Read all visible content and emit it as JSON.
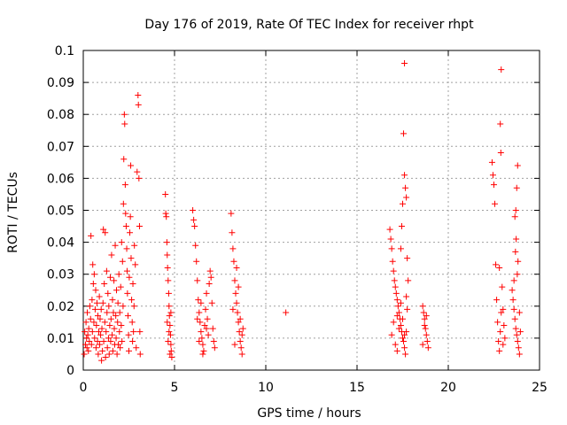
{
  "chart_data": {
    "type": "scatter",
    "title": "Day 176 of 2019, Rate Of TEC Index for receiver rhpt",
    "xlabel": "GPS time / hours",
    "ylabel": "ROTI / TECUs",
    "xlim": [
      0,
      25
    ],
    "ylim": [
      0,
      0.1
    ],
    "xticks": [
      0,
      5,
      10,
      15,
      20,
      25
    ],
    "xtick_labels": [
      "0",
      "5",
      "10",
      "15",
      "20",
      "25"
    ],
    "yticks": [
      0,
      0.01,
      0.02,
      0.03,
      0.04,
      0.05,
      0.06,
      0.07,
      0.08,
      0.09,
      0.1
    ],
    "ytick_labels": [
      "0",
      "0.01",
      "0.02",
      "0.03",
      "0.04",
      "0.05",
      "0.06",
      "0.07",
      "0.08",
      "0.09",
      "0.1"
    ],
    "grid": true,
    "marker": "+",
    "color": "#ff0000",
    "series": [
      {
        "name": "ROTI",
        "points": [
          [
            0.05,
            0.005
          ],
          [
            0.08,
            0.012
          ],
          [
            0.12,
            0.008
          ],
          [
            0.15,
            0.015
          ],
          [
            0.18,
            0.01
          ],
          [
            0.2,
            0.007
          ],
          [
            0.22,
            0.018
          ],
          [
            0.25,
            0.011
          ],
          [
            0.28,
            0.006
          ],
          [
            0.3,
            0.013
          ],
          [
            0.33,
            0.009
          ],
          [
            0.36,
            0.02
          ],
          [
            0.4,
            0.016
          ],
          [
            0.42,
            0.042
          ],
          [
            0.45,
            0.008
          ],
          [
            0.48,
            0.022
          ],
          [
            0.5,
            0.012
          ],
          [
            0.52,
            0.033
          ],
          [
            0.55,
            0.027
          ],
          [
            0.58,
            0.015
          ],
          [
            0.6,
            0.03
          ],
          [
            0.62,
            0.01
          ],
          [
            0.65,
            0.019
          ],
          [
            0.68,
            0.025
          ],
          [
            0.7,
            0.007
          ],
          [
            0.72,
            0.014
          ],
          [
            0.75,
            0.021
          ],
          [
            0.78,
            0.009
          ],
          [
            0.8,
            0.017
          ],
          [
            0.82,
            0.005
          ],
          [
            0.85,
            0.012
          ],
          [
            0.88,
            0.023
          ],
          [
            0.9,
            0.008
          ],
          [
            0.92,
            0.016
          ],
          [
            0.95,
            0.011
          ],
          [
            0.98,
            0.019
          ],
          [
            1.0,
            0.003
          ],
          [
            1.02,
            0.013
          ],
          [
            1.05,
            0.006
          ],
          [
            1.08,
            0.021
          ],
          [
            1.1,
            0.044
          ],
          [
            1.12,
            0.009
          ],
          [
            1.15,
            0.027
          ],
          [
            1.18,
            0.015
          ],
          [
            1.2,
            0.043
          ],
          [
            1.22,
            0.004
          ],
          [
            1.25,
            0.012
          ],
          [
            1.28,
            0.031
          ],
          [
            1.3,
            0.018
          ],
          [
            1.32,
            0.007
          ],
          [
            1.35,
            0.024
          ],
          [
            1.38,
            0.01
          ],
          [
            1.4,
            0.02
          ],
          [
            1.42,
            0.005
          ],
          [
            1.45,
            0.014
          ],
          [
            1.48,
            0.029
          ],
          [
            1.5,
            0.009
          ],
          [
            1.52,
            0.016
          ],
          [
            1.55,
            0.036
          ],
          [
            1.58,
            0.011
          ],
          [
            1.6,
            0.022
          ],
          [
            1.62,
            0.006
          ],
          [
            1.65,
            0.018
          ],
          [
            1.68,
            0.028
          ],
          [
            1.7,
            0.013
          ],
          [
            1.72,
            0.008
          ],
          [
            1.75,
            0.039
          ],
          [
            1.78,
            0.017
          ],
          [
            1.8,
            0.01
          ],
          [
            1.82,
            0.025
          ],
          [
            1.85,
            0.005
          ],
          [
            1.88,
            0.015
          ],
          [
            1.9,
            0.021
          ],
          [
            1.92,
            0.008
          ],
          [
            1.95,
            0.03
          ],
          [
            1.98,
            0.012
          ],
          [
            2.0,
            0.018
          ],
          [
            2.02,
            0.007
          ],
          [
            2.05,
            0.026
          ],
          [
            2.08,
            0.014
          ],
          [
            2.1,
            0.04
          ],
          [
            2.12,
            0.009
          ],
          [
            2.15,
            0.034
          ],
          [
            2.18,
            0.02
          ],
          [
            2.2,
            0.052
          ],
          [
            2.22,
            0.066
          ],
          [
            2.25,
            0.08
          ],
          [
            2.27,
            0.077
          ],
          [
            2.3,
            0.058
          ],
          [
            2.32,
            0.049
          ],
          [
            2.35,
            0.045
          ],
          [
            2.38,
            0.038
          ],
          [
            2.4,
            0.031
          ],
          [
            2.42,
            0.024
          ],
          [
            2.45,
            0.017
          ],
          [
            2.48,
            0.011
          ],
          [
            2.5,
            0.006
          ],
          [
            2.52,
            0.029
          ],
          [
            2.55,
            0.043
          ],
          [
            2.58,
            0.048
          ],
          [
            2.6,
            0.064
          ],
          [
            2.62,
            0.035
          ],
          [
            2.65,
            0.022
          ],
          [
            2.68,
            0.015
          ],
          [
            2.7,
            0.009
          ],
          [
            2.72,
            0.027
          ],
          [
            2.75,
            0.012
          ],
          [
            2.78,
            0.02
          ],
          [
            2.8,
            0.039
          ],
          [
            2.85,
            0.033
          ],
          [
            2.9,
            0.007
          ],
          [
            2.95,
            0.062
          ],
          [
            3.0,
            0.086
          ],
          [
            3.02,
            0.083
          ],
          [
            3.05,
            0.06
          ],
          [
            3.08,
            0.045
          ],
          [
            3.1,
            0.012
          ],
          [
            3.12,
            0.005
          ],
          [
            4.5,
            0.055
          ],
          [
            4.52,
            0.049
          ],
          [
            4.55,
            0.048
          ],
          [
            4.58,
            0.04
          ],
          [
            4.6,
            0.036
          ],
          [
            4.62,
            0.032
          ],
          [
            4.65,
            0.028
          ],
          [
            4.68,
            0.024
          ],
          [
            4.7,
            0.02
          ],
          [
            4.72,
            0.017
          ],
          [
            4.75,
            0.014
          ],
          [
            4.78,
            0.011
          ],
          [
            4.8,
            0.008
          ],
          [
            4.82,
            0.006
          ],
          [
            4.85,
            0.004
          ],
          [
            4.6,
            0.015
          ],
          [
            4.65,
            0.009
          ],
          [
            4.7,
            0.012
          ],
          [
            4.75,
            0.005
          ],
          [
            4.8,
            0.018
          ],
          [
            6.0,
            0.05
          ],
          [
            6.05,
            0.047
          ],
          [
            6.1,
            0.045
          ],
          [
            6.15,
            0.039
          ],
          [
            6.2,
            0.034
          ],
          [
            6.25,
            0.028
          ],
          [
            6.3,
            0.022
          ],
          [
            6.35,
            0.018
          ],
          [
            6.4,
            0.015
          ],
          [
            6.45,
            0.012
          ],
          [
            6.5,
            0.01
          ],
          [
            6.55,
            0.008
          ],
          [
            6.6,
            0.006
          ],
          [
            6.65,
            0.014
          ],
          [
            6.7,
            0.019
          ],
          [
            6.75,
            0.024
          ],
          [
            6.8,
            0.016
          ],
          [
            6.85,
            0.011
          ],
          [
            6.9,
            0.027
          ],
          [
            6.95,
            0.031
          ],
          [
            7.0,
            0.029
          ],
          [
            7.05,
            0.021
          ],
          [
            7.1,
            0.013
          ],
          [
            7.15,
            0.009
          ],
          [
            7.2,
            0.007
          ],
          [
            6.25,
            0.016
          ],
          [
            6.35,
            0.009
          ],
          [
            6.45,
            0.021
          ],
          [
            6.55,
            0.005
          ],
          [
            6.75,
            0.013
          ],
          [
            8.1,
            0.049
          ],
          [
            8.15,
            0.043
          ],
          [
            8.2,
            0.038
          ],
          [
            8.25,
            0.034
          ],
          [
            8.3,
            0.028
          ],
          [
            8.35,
            0.024
          ],
          [
            8.4,
            0.021
          ],
          [
            8.45,
            0.018
          ],
          [
            8.5,
            0.015
          ],
          [
            8.55,
            0.012
          ],
          [
            8.6,
            0.009
          ],
          [
            8.65,
            0.007
          ],
          [
            8.7,
            0.005
          ],
          [
            8.75,
            0.013
          ],
          [
            8.4,
            0.032
          ],
          [
            8.5,
            0.026
          ],
          [
            8.2,
            0.019
          ],
          [
            8.3,
            0.008
          ],
          [
            8.6,
            0.016
          ],
          [
            8.7,
            0.011
          ],
          [
            11.1,
            0.018
          ],
          [
            16.8,
            0.044
          ],
          [
            16.85,
            0.041
          ],
          [
            16.9,
            0.038
          ],
          [
            16.95,
            0.034
          ],
          [
            17.0,
            0.031
          ],
          [
            17.05,
            0.028
          ],
          [
            17.1,
            0.026
          ],
          [
            17.15,
            0.024
          ],
          [
            17.2,
            0.022
          ],
          [
            17.25,
            0.02
          ],
          [
            17.3,
            0.018
          ],
          [
            17.35,
            0.016
          ],
          [
            17.4,
            0.014
          ],
          [
            17.45,
            0.012
          ],
          [
            17.5,
            0.01
          ],
          [
            17.55,
            0.009
          ],
          [
            17.6,
            0.007
          ],
          [
            17.65,
            0.005
          ],
          [
            17.7,
            0.012
          ],
          [
            17.75,
            0.019
          ],
          [
            17.6,
            0.096
          ],
          [
            17.55,
            0.074
          ],
          [
            17.6,
            0.061
          ],
          [
            17.65,
            0.057
          ],
          [
            17.7,
            0.054
          ],
          [
            17.5,
            0.052
          ],
          [
            17.45,
            0.045
          ],
          [
            17.4,
            0.038
          ],
          [
            17.75,
            0.035
          ],
          [
            17.8,
            0.028
          ],
          [
            17.2,
            0.017
          ],
          [
            17.3,
            0.013
          ],
          [
            17.1,
            0.008
          ],
          [
            17.0,
            0.015
          ],
          [
            17.4,
            0.021
          ],
          [
            17.5,
            0.016
          ],
          [
            17.6,
            0.011
          ],
          [
            17.7,
            0.023
          ],
          [
            16.9,
            0.011
          ],
          [
            17.2,
            0.006
          ],
          [
            18.6,
            0.02
          ],
          [
            18.65,
            0.018
          ],
          [
            18.7,
            0.016
          ],
          [
            18.75,
            0.013
          ],
          [
            18.8,
            0.011
          ],
          [
            18.85,
            0.009
          ],
          [
            18.9,
            0.007
          ],
          [
            18.7,
            0.014
          ],
          [
            18.8,
            0.017
          ],
          [
            18.6,
            0.008
          ],
          [
            22.4,
            0.065
          ],
          [
            22.45,
            0.061
          ],
          [
            22.5,
            0.058
          ],
          [
            22.55,
            0.052
          ],
          [
            22.6,
            0.033
          ],
          [
            22.65,
            0.022
          ],
          [
            22.7,
            0.015
          ],
          [
            22.75,
            0.009
          ],
          [
            22.8,
            0.006
          ],
          [
            22.85,
            0.012
          ],
          [
            22.9,
            0.094
          ],
          [
            22.85,
            0.077
          ],
          [
            22.88,
            0.068
          ],
          [
            22.8,
            0.032
          ],
          [
            22.95,
            0.026
          ],
          [
            23.0,
            0.019
          ],
          [
            23.05,
            0.014
          ],
          [
            23.1,
            0.01
          ],
          [
            22.9,
            0.018
          ],
          [
            23.0,
            0.008
          ],
          [
            23.5,
            0.025
          ],
          [
            23.55,
            0.022
          ],
          [
            23.6,
            0.019
          ],
          [
            23.65,
            0.016
          ],
          [
            23.7,
            0.013
          ],
          [
            23.75,
            0.011
          ],
          [
            23.8,
            0.009
          ],
          [
            23.85,
            0.007
          ],
          [
            23.9,
            0.005
          ],
          [
            23.95,
            0.012
          ],
          [
            23.8,
            0.064
          ],
          [
            23.75,
            0.057
          ],
          [
            23.7,
            0.05
          ],
          [
            23.65,
            0.048
          ],
          [
            23.72,
            0.041
          ],
          [
            23.68,
            0.037
          ],
          [
            23.78,
            0.03
          ],
          [
            23.82,
            0.034
          ],
          [
            23.6,
            0.028
          ],
          [
            23.9,
            0.018
          ]
        ]
      }
    ]
  }
}
